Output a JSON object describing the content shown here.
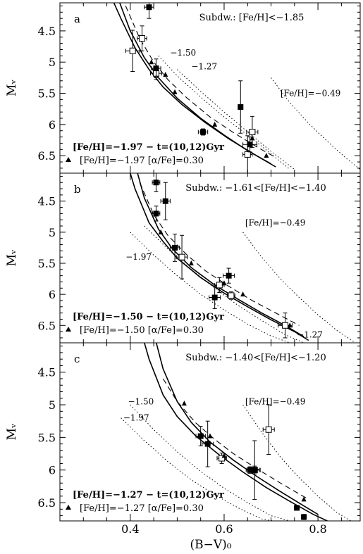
{
  "x_axis": {
    "label": "(B−V)₀",
    "range": [
      0.25,
      0.89
    ],
    "ticks": [
      0.4,
      0.6,
      0.8
    ],
    "tick_labels": [
      "0.4",
      "0.6",
      "0.8"
    ]
  },
  "y_label": "Mᵥ",
  "y_range": [
    4.05,
    6.78
  ],
  "y_ticks": [
    4.5,
    5,
    5.5,
    6,
    6.5
  ],
  "y_tick_labels": [
    "4.5",
    "5",
    "5.5",
    "6",
    "6.5"
  ],
  "chart_data": [
    {
      "type": "scatter",
      "panel_letter": "a",
      "title": "Subdw.: [Fe/H]<−1.85",
      "legend": [
        {
          "text": "[Fe/H]=−1.97  −  t=(10,12)Gyr",
          "style": "solid"
        },
        {
          "text": "[Fe/H]=−1.97 [α/Fe]=0.30",
          "style": "dashed"
        }
      ],
      "curve_labels": [
        {
          "text": "−1.50",
          "x": 0.485,
          "y": 4.85
        },
        {
          "text": "−1.27",
          "x": 0.53,
          "y": 5.07
        },
        {
          "text": "[Fe/H]=−0.49",
          "x": 0.72,
          "y": 5.5
        }
      ],
      "filled_points": [
        {
          "x": 0.44,
          "y": 4.12,
          "xerr": 0.01,
          "yerr": 0.18
        },
        {
          "x": 0.455,
          "y": 5.1,
          "xerr": 0.01,
          "yerr": 0.15
        },
        {
          "x": 0.635,
          "y": 5.72,
          "xerr": 0.005,
          "yerr": 0.42
        },
        {
          "x": 0.655,
          "y": 6.32,
          "xerr": 0.015,
          "yerr": 0.12
        },
        {
          "x": 0.555,
          "y": 6.12,
          "xerr": 0.01,
          "yerr": 0.05
        }
      ],
      "open_points": [
        {
          "x": 0.405,
          "y": 4.82,
          "xerr": 0.015,
          "yerr": 0.33
        },
        {
          "x": 0.425,
          "y": 4.62,
          "xerr": 0.01,
          "yerr": 0.2
        },
        {
          "x": 0.455,
          "y": 5.18,
          "xerr": 0.012,
          "yerr": 0.1
        },
        {
          "x": 0.65,
          "y": 6.48,
          "xerr": 0.01,
          "yerr": 0.3
        },
        {
          "x": 0.66,
          "y": 6.12,
          "xerr": 0.012,
          "yerr": 0.25
        }
      ],
      "triangles": [
        {
          "x": 0.445,
          "y": 5.0
        },
        {
          "x": 0.475,
          "y": 5.2
        },
        {
          "x": 0.495,
          "y": 5.48
        },
        {
          "x": 0.58,
          "y": 6.0
        },
        {
          "x": 0.66,
          "y": 6.22
        },
        {
          "x": 0.69,
          "y": 6.5
        }
      ],
      "curves": {
        "solid_1": {
          "x": [
            0.35,
            0.38,
            0.41,
            0.44,
            0.47,
            0.51,
            0.56,
            0.61,
            0.66,
            0.71
          ],
          "y": [
            3.8,
            4.3,
            4.77,
            5.12,
            5.4,
            5.68,
            5.97,
            6.23,
            6.46,
            6.68
          ]
        },
        "solid_2": {
          "x": [
            0.37,
            0.4,
            0.43,
            0.46,
            0.5,
            0.55,
            0.6,
            0.65,
            0.7
          ],
          "y": [
            3.9,
            4.5,
            4.93,
            5.25,
            5.58,
            5.9,
            6.17,
            6.42,
            6.63
          ]
        },
        "dashed": {
          "x": [
            0.39,
            0.42,
            0.45,
            0.48,
            0.52,
            0.57,
            0.62,
            0.67,
            0.71
          ],
          "y": [
            4.1,
            4.62,
            5.0,
            5.28,
            5.57,
            5.88,
            6.13,
            6.36,
            6.53
          ]
        },
        "dotted": [
          {
            "x": [
              0.46,
              0.5,
              0.55,
              0.6,
              0.65,
              0.7,
              0.74
            ],
            "y": [
              4.9,
              5.22,
              5.56,
              5.88,
              6.17,
              6.47,
              6.72
            ]
          },
          {
            "x": [
              0.5,
              0.55,
              0.6,
              0.65,
              0.7,
              0.75
            ],
            "y": [
              5.12,
              5.47,
              5.8,
              6.12,
              6.43,
              6.72
            ]
          },
          {
            "x": [
              0.7,
              0.74,
              0.78,
              0.82,
              0.86,
              0.89
            ],
            "y": [
              5.25,
              5.65,
              5.98,
              6.27,
              6.54,
              6.72
            ]
          }
        ]
      }
    },
    {
      "type": "scatter",
      "panel_letter": "b",
      "title": "Subdw.: −1.61<[Fe/H]<−1.40",
      "legend": [
        {
          "text": "[Fe/H]=−1.50  −  t=(10,12)Gyr",
          "style": "solid"
        },
        {
          "text": "[Fe/H]=−1.50 [α/Fe]=0.30",
          "style": "dashed"
        }
      ],
      "curve_labels": [
        {
          "text": "−1.97",
          "x": 0.39,
          "y": 5.4
        },
        {
          "text": "[Fe/H]=−0.49",
          "x": 0.645,
          "y": 4.85
        },
        {
          "text": "−1.27",
          "x": 0.755,
          "y": 6.65
        }
      ],
      "filled_points": [
        {
          "x": 0.455,
          "y": 4.2,
          "xerr": 0.008,
          "yerr": 0.15
        },
        {
          "x": 0.455,
          "y": 4.7,
          "xerr": 0.008,
          "yerr": 0.12
        },
        {
          "x": 0.475,
          "y": 4.5,
          "xerr": 0.01,
          "yerr": 0.3
        },
        {
          "x": 0.495,
          "y": 5.25,
          "xerr": 0.01,
          "yerr": 0.22
        },
        {
          "x": 0.58,
          "y": 6.05,
          "xerr": 0.012,
          "yerr": 0.18
        },
        {
          "x": 0.61,
          "y": 5.7,
          "xerr": 0.012,
          "yerr": 0.12
        }
      ],
      "open_points": [
        {
          "x": 0.51,
          "y": 5.4,
          "xerr": 0.012,
          "yerr": 0.35
        },
        {
          "x": 0.59,
          "y": 5.85,
          "xerr": 0.01,
          "yerr": 0.12
        },
        {
          "x": 0.615,
          "y": 6.02,
          "xerr": 0.008,
          "yerr": 0.06
        },
        {
          "x": 0.73,
          "y": 6.5,
          "xerr": 0.015,
          "yerr": 0.2
        }
      ],
      "triangles": [
        {
          "x": 0.465,
          "y": 5.0
        },
        {
          "x": 0.53,
          "y": 5.5
        },
        {
          "x": 0.6,
          "y": 5.82
        },
        {
          "x": 0.64,
          "y": 6.0
        },
        {
          "x": 0.74,
          "y": 6.5
        }
      ],
      "curves": {
        "solid_1": {
          "x": [
            0.39,
            0.41,
            0.44,
            0.47,
            0.5,
            0.55,
            0.6,
            0.65,
            0.7,
            0.75,
            0.78
          ],
          "y": [
            3.8,
            4.3,
            4.85,
            5.15,
            5.42,
            5.73,
            5.98,
            6.2,
            6.41,
            6.6,
            6.74
          ]
        },
        "solid_2": {
          "x": [
            0.41,
            0.43,
            0.46,
            0.49,
            0.53,
            0.58,
            0.63,
            0.68,
            0.73,
            0.77
          ],
          "y": [
            3.9,
            4.45,
            4.95,
            5.27,
            5.57,
            5.85,
            6.08,
            6.3,
            6.5,
            6.68
          ]
        },
        "dashed": {
          "x": [
            0.42,
            0.45,
            0.48,
            0.52,
            0.56,
            0.61,
            0.66,
            0.71,
            0.76
          ],
          "y": [
            4.2,
            4.72,
            5.05,
            5.36,
            5.62,
            5.87,
            6.1,
            6.3,
            6.5
          ]
        },
        "dotted": [
          {
            "x": [
              0.4,
              0.45,
              0.5,
              0.55,
              0.6,
              0.65,
              0.7,
              0.74
            ],
            "y": [
              5.0,
              5.37,
              5.7,
              6.0,
              6.25,
              6.48,
              6.67,
              6.78
            ]
          },
          {
            "x": [
              0.43,
              0.48,
              0.53,
              0.58,
              0.63,
              0.68,
              0.73,
              0.77
            ],
            "y": [
              4.9,
              5.27,
              5.6,
              5.9,
              6.18,
              6.42,
              6.65,
              6.78
            ]
          },
          {
            "x": [
              0.64,
              0.68,
              0.72,
              0.76,
              0.8,
              0.84,
              0.88
            ],
            "y": [
              5.0,
              5.4,
              5.75,
              6.05,
              6.33,
              6.58,
              6.78
            ]
          }
        ]
      }
    },
    {
      "type": "scatter",
      "panel_letter": "c",
      "title": "Subdw.: −1.40<[Fe/H]<−1.20",
      "legend": [
        {
          "text": "[Fe/H]=−1.27  −  t=(10,12)Gyr",
          "style": "solid"
        },
        {
          "text": "[Fe/H]=−1.27 [α/Fe]=0.30",
          "style": "dashed"
        }
      ],
      "curve_labels": [
        {
          "text": "−1.50",
          "x": 0.395,
          "y": 4.95
        },
        {
          "text": "−1.97",
          "x": 0.385,
          "y": 5.2
        },
        {
          "text": "[Fe/H]=−0.49",
          "x": 0.645,
          "y": 4.95
        }
      ],
      "filled_points": [
        {
          "x": 0.55,
          "y": 5.48,
          "xerr": 0.01,
          "yerr": 0.15
        },
        {
          "x": 0.565,
          "y": 5.6,
          "xerr": 0.012,
          "yerr": 0.35
        },
        {
          "x": 0.655,
          "y": 6.0,
          "xerr": 0.008,
          "yerr": 0.05
        },
        {
          "x": 0.665,
          "y": 6.0,
          "xerr": 0.01,
          "yerr": 0.45
        },
        {
          "x": 0.755,
          "y": 6.58,
          "xerr": 0.005,
          "yerr": 0.03
        },
        {
          "x": 0.77,
          "y": 6.72,
          "xerr": 0.005,
          "yerr": 0.04
        }
      ],
      "open_points": [
        {
          "x": 0.595,
          "y": 5.82,
          "xerr": 0.01,
          "yerr": 0.08
        },
        {
          "x": 0.665,
          "y": 6.0,
          "xerr": 0.012,
          "yerr": 0.06
        },
        {
          "x": 0.695,
          "y": 5.38,
          "xerr": 0.012,
          "yerr": 0.38
        }
      ],
      "triangles": [
        {
          "x": 0.515,
          "y": 4.98
        },
        {
          "x": 0.57,
          "y": 5.48
        },
        {
          "x": 0.6,
          "y": 5.78
        },
        {
          "x": 0.77,
          "y": 6.45
        }
      ],
      "curves": {
        "solid_1": {
          "x": [
            0.42,
            0.44,
            0.47,
            0.5,
            0.54,
            0.59,
            0.64,
            0.69,
            0.74,
            0.79,
            0.82
          ],
          "y": [
            3.8,
            4.3,
            4.85,
            5.18,
            5.48,
            5.77,
            6.03,
            6.27,
            6.48,
            6.68,
            6.78
          ]
        },
        "solid_2": {
          "x": [
            0.45,
            0.47,
            0.5,
            0.53,
            0.57,
            0.62,
            0.67,
            0.72,
            0.77,
            0.8
          ],
          "y": [
            3.9,
            4.45,
            4.95,
            5.27,
            5.57,
            5.85,
            6.1,
            6.33,
            6.55,
            6.68
          ]
        },
        "dashed": {
          "x": [
            0.47,
            0.5,
            0.54,
            0.58,
            0.62,
            0.67,
            0.72,
            0.78
          ],
          "y": [
            4.6,
            4.95,
            5.28,
            5.53,
            5.75,
            5.98,
            6.2,
            6.45
          ]
        },
        "dotted": [
          {
            "x": [
              0.38,
              0.43,
              0.48,
              0.53,
              0.58,
              0.63,
              0.68,
              0.72
            ],
            "y": [
              5.2,
              5.55,
              5.87,
              6.15,
              6.38,
              6.58,
              6.75,
              6.8
            ]
          },
          {
            "x": [
              0.4,
              0.45,
              0.5,
              0.55,
              0.6,
              0.65,
              0.7,
              0.75
            ],
            "y": [
              5.0,
              5.38,
              5.72,
              6.02,
              6.28,
              6.5,
              6.7,
              6.8
            ]
          },
          {
            "x": [
              0.64,
              0.68,
              0.72,
              0.76,
              0.8,
              0.84,
              0.87
            ],
            "y": [
              5.0,
              5.42,
              5.8,
              6.12,
              6.4,
              6.65,
              6.78
            ]
          }
        ]
      }
    }
  ]
}
